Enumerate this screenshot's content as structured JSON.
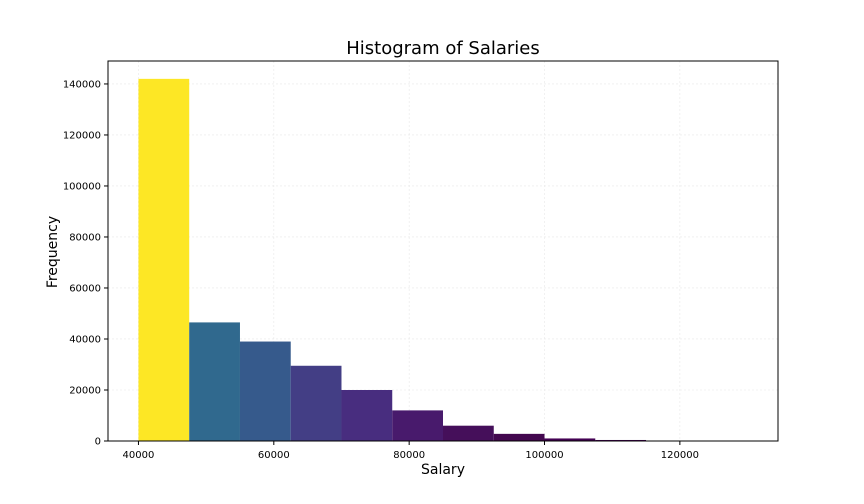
{
  "chart_data": {
    "type": "bar",
    "title": "Histogram of Salaries",
    "xlabel": "Salary",
    "ylabel": "Frequency",
    "xlim": [
      35500,
      134500
    ],
    "ylim": [
      0,
      149000
    ],
    "grid": true,
    "x_ticks": [
      40000,
      60000,
      80000,
      100000,
      120000
    ],
    "y_ticks": [
      0,
      20000,
      40000,
      60000,
      80000,
      100000,
      120000,
      140000
    ],
    "bins": [
      {
        "start": 40000,
        "end": 47500,
        "value": 142000,
        "color": "#fde725"
      },
      {
        "start": 47500,
        "end": 55000,
        "value": 46500,
        "color": "#30698e"
      },
      {
        "start": 55000,
        "end": 62500,
        "value": 39000,
        "color": "#365a8c"
      },
      {
        "start": 62500,
        "end": 70000,
        "value": 29500,
        "color": "#433e85"
      },
      {
        "start": 70000,
        "end": 77500,
        "value": 20000,
        "color": "#482d7f"
      },
      {
        "start": 77500,
        "end": 85000,
        "value": 12000,
        "color": "#481a6c"
      },
      {
        "start": 85000,
        "end": 92500,
        "value": 6000,
        "color": "#450f5a"
      },
      {
        "start": 92500,
        "end": 100000,
        "value": 2800,
        "color": "#43084f"
      },
      {
        "start": 100000,
        "end": 107500,
        "value": 1000,
        "color": "#440154"
      },
      {
        "start": 107500,
        "end": 115000,
        "value": 400,
        "color": "#440154"
      },
      {
        "start": 115000,
        "end": 122500,
        "value": 150,
        "color": "#440154"
      },
      {
        "start": 122500,
        "end": 130000,
        "value": 60,
        "color": "#440154"
      }
    ]
  }
}
